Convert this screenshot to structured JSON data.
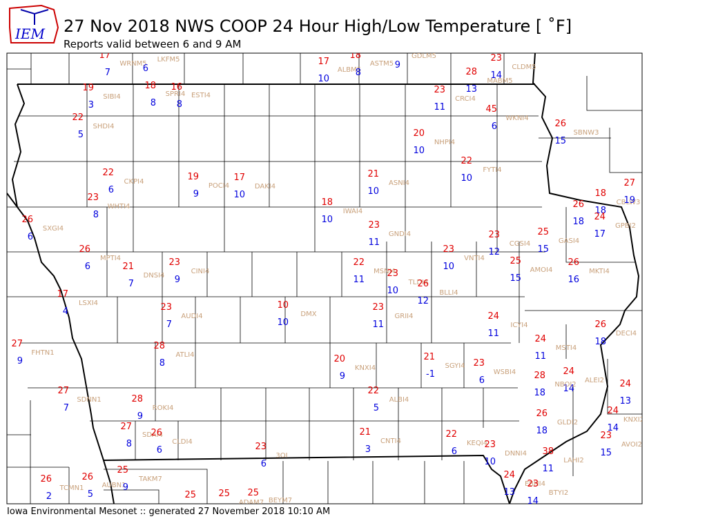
{
  "header": {
    "logo": "IEM",
    "title": "27 Nov 2018 NWS COOP 24 Hour High/Low Temperature [ ˚F]",
    "subtitle": "Reports valid between 6 and 9 AM"
  },
  "footer": "Iowa Environmental Mesonet :: generated 27 November 2018 10:10 AM",
  "stations": [
    {
      "high": 17,
      "low": 7
    },
    {
      "id": "WRNM5",
      "low": 6
    },
    {
      "id": "LKFM5"
    },
    {
      "high": 17,
      "low": 10
    },
    {
      "id": "ALBM5",
      "high": 18,
      "low": 8
    },
    {
      "id": "ASTM5",
      "low": 9
    },
    {
      "id": "GDLM5"
    },
    {
      "id": "CLDM5",
      "high": 23,
      "low": 14
    },
    {
      "id": "MABM5",
      "high": 28,
      "low": 13
    },
    {
      "id": "SIBI4",
      "high": 19,
      "low": 3
    },
    {
      "high": 18,
      "low": 8
    },
    {
      "id": "SPRI4",
      "high": 16,
      "low": 8
    },
    {
      "id": "ESTI4"
    },
    {
      "id": "CRCI4",
      "high": 23,
      "low": 11
    },
    {
      "id": "WKNI4",
      "high": 45,
      "low": 6
    },
    {
      "id": "SHDI4",
      "high": 22,
      "low": 5
    },
    {
      "id": "SBNW3",
      "high": 26,
      "low": 15
    },
    {
      "id": "NHPI4",
      "high": 20,
      "low": 10
    },
    {
      "id": "FYTI4",
      "high": 22,
      "low": 10
    },
    {
      "id": "CKPI4",
      "high": 22,
      "low": 6
    },
    {
      "id": "POCI4",
      "high": 19,
      "low": 9
    },
    {
      "id": "DAKI4",
      "high": 17,
      "low": 10
    },
    {
      "id": "ASNI4",
      "high": 21,
      "low": 10
    },
    {
      "id": "CBLW3",
      "high": 27,
      "low": 19
    },
    {
      "high": 18,
      "low": 18
    },
    {
      "id": "WHTI4",
      "high": 23,
      "low": 8
    },
    {
      "id": "IWAI4",
      "high": 18,
      "low": 10
    },
    {
      "high": 26,
      "low": 18
    },
    {
      "id": "GPBI2",
      "high": 24,
      "low": 17
    },
    {
      "id": "SXGI4",
      "high": 26,
      "low": 6
    },
    {
      "id": "GNDI4",
      "high": 23,
      "low": 11
    },
    {
      "id": "CGSI4",
      "high": 23,
      "low": 12
    },
    {
      "id": "GASI4",
      "high": 25,
      "low": 15
    },
    {
      "id": "MPTI4",
      "high": 26,
      "low": 6
    },
    {
      "id": "VNTI4",
      "high": 23,
      "low": 10
    },
    {
      "id": "DNSI4",
      "high": 21,
      "low": 7
    },
    {
      "id": "CINI4",
      "high": 23,
      "low": 9
    },
    {
      "id": "MSNI4",
      "high": 22,
      "low": 11
    },
    {
      "id": "AMOI4",
      "high": 25,
      "low": 15
    },
    {
      "id": "MKTI4",
      "high": 26,
      "low": 16
    },
    {
      "id": "TLDI4",
      "high": 23,
      "low": 10
    },
    {
      "id": "BLLI4",
      "high": 26,
      "low": 12
    },
    {
      "id": "LSXI4",
      "high": 17,
      "low": 4
    },
    {
      "id": "DMX",
      "high": 10,
      "low": 10
    },
    {
      "id": "AUDI4",
      "high": 23,
      "low": 7
    },
    {
      "id": "GRII4",
      "high": 23,
      "low": 11
    },
    {
      "id": "ICYI4",
      "high": 24,
      "low": 11
    },
    {
      "id": "DECI4",
      "high": 26,
      "low": 18
    },
    {
      "id": "FHTN1",
      "high": 27,
      "low": 9
    },
    {
      "id": "ATLI4",
      "high": 28,
      "low": 8
    },
    {
      "id": "MSTI4",
      "high": 24,
      "low": 11
    },
    {
      "id": "KNXI4",
      "high": 20,
      "low": 9
    },
    {
      "id": "SGYI4",
      "high": 21,
      "low": -1
    },
    {
      "id": "WSBI4",
      "high": 23,
      "low": 6
    },
    {
      "id": "ALEI2",
      "high": 24,
      "low": 14
    },
    {
      "id": "NBOI2",
      "high": 28,
      "low": 18
    },
    {
      "high": 24,
      "low": 13
    },
    {
      "id": "SDNN1",
      "high": 27,
      "low": 7
    },
    {
      "id": "ALBI4",
      "high": 22,
      "low": 5
    },
    {
      "id": "ROKI4",
      "high": 28,
      "low": 9
    },
    {
      "id": "KNXI2",
      "high": 24,
      "low": 14
    },
    {
      "id": "GLDI2",
      "high": 26,
      "low": 18
    },
    {
      "id": "SDAI4",
      "high": 27,
      "low": 8
    },
    {
      "id": "CLDI4",
      "high": 26,
      "low": 6
    },
    {
      "id": "CNTI4",
      "high": 21,
      "low": 3
    },
    {
      "id": "KEQI4",
      "high": 22,
      "low": 6
    },
    {
      "id": "AVOI2",
      "high": 23,
      "low": 15
    },
    {
      "id": "DNNI4",
      "high": 23,
      "low": 10
    },
    {
      "id": "3OI",
      "high": 23,
      "low": 6
    },
    {
      "id": "LAHI2",
      "high": 38,
      "low": 11
    },
    {
      "id": "AUBN1",
      "high": 25,
      "low": 9
    },
    {
      "id": "TAKM7"
    },
    {
      "id": "TCMN1",
      "high": 26,
      "low": 2
    },
    {
      "high": 26,
      "low": 5
    },
    {
      "id": "EBHI4",
      "high": 24,
      "low": 13
    },
    {
      "id": "BTYI2",
      "high": 23,
      "low": 14
    },
    {
      "high": 25
    },
    {
      "high": 25
    },
    {
      "id": "ADAM7",
      "high": 25
    },
    {
      "id": "BEYM7"
    }
  ]
}
